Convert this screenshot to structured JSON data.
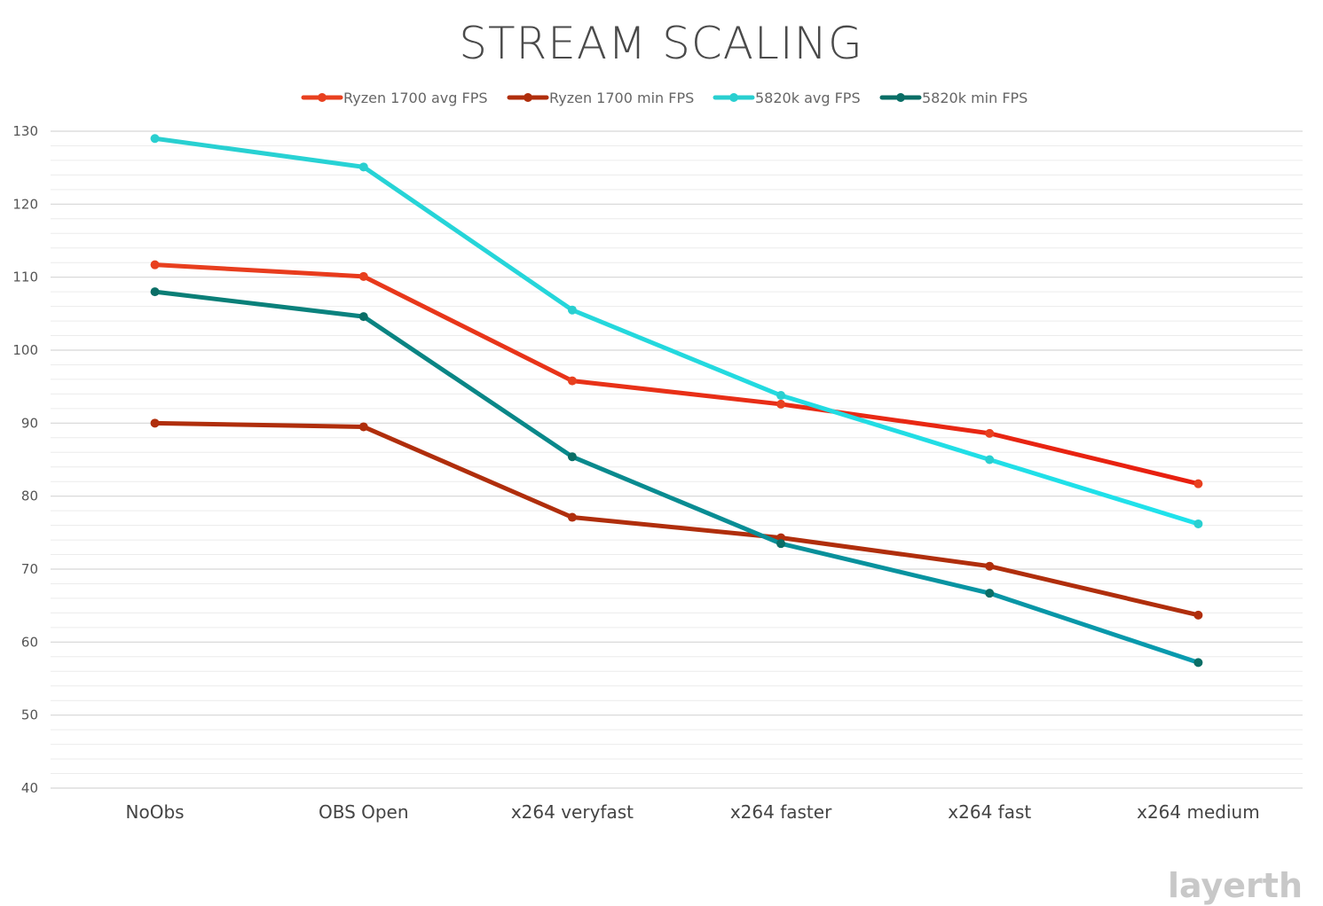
{
  "watermark": "layerth",
  "chart_data": {
    "type": "line",
    "title": "STREAM SCALING",
    "xlabel": "",
    "ylabel": "",
    "categories": [
      "NoObs",
      "OBS Open",
      "x264 veryfast",
      "x264 faster",
      "x264 fast",
      "x264 medium"
    ],
    "ylim": [
      40,
      130
    ],
    "yticks": [
      40,
      50,
      60,
      70,
      80,
      90,
      100,
      110,
      120,
      130
    ],
    "grid": true,
    "legend_position": "top",
    "series": [
      {
        "name": "Ryzen 1700 avg FPS",
        "color_start": "#e8401f",
        "color_end": "#e81f0f",
        "marker": "#e8401f",
        "values": [
          111.7,
          110.1,
          95.8,
          92.6,
          88.6,
          81.7
        ]
      },
      {
        "name": "Ryzen 1700 min FPS",
        "color_start": "#b02e0c",
        "color_end": "#b02e0c",
        "marker": "#b02e0c",
        "values": [
          90.0,
          89.5,
          77.1,
          74.3,
          70.4,
          63.7
        ]
      },
      {
        "name": "5820k avg FPS",
        "color_start": "#29cfd0",
        "color_end": "#1fe2ec",
        "marker": "#29cfd0",
        "values": [
          129.0,
          125.1,
          105.5,
          93.8,
          85.0,
          76.2
        ]
      },
      {
        "name": "5820k min FPS",
        "color_start": "#0a7d74",
        "color_end": "#089bb0",
        "marker": "#0a6e66",
        "values": [
          108.0,
          104.6,
          85.4,
          73.5,
          66.7,
          57.2
        ]
      }
    ]
  }
}
